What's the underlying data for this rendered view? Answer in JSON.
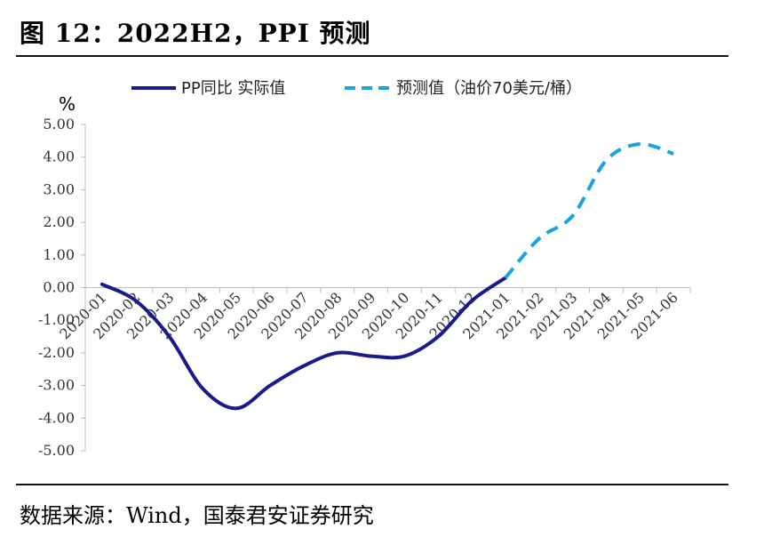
{
  "figure_title": "图 12：2022H2，PPI 预测",
  "source_note": "数据来源：Wind，国泰君安证券研究",
  "chart_data": {
    "type": "line",
    "title": "",
    "ylabel": "%",
    "ylim": [
      -5,
      5
    ],
    "yticks": [
      5,
      4,
      3,
      2,
      1,
      0,
      -1,
      -2,
      -3,
      -4,
      -5
    ],
    "ytick_labels": [
      "5.00",
      "4.00",
      "3.00",
      "2.00",
      "1.00",
      "0.00",
      "-1.00",
      "-2.00",
      "-3.00",
      "-4.00",
      "-5.00"
    ],
    "categories": [
      "2020-01",
      "2020-02",
      "2020-03",
      "2020-04",
      "2020-05",
      "2020-06",
      "2020-07",
      "2020-08",
      "2020-09",
      "2020-10",
      "2020-11",
      "2020-12",
      "2021-01",
      "2021-02",
      "2021-03",
      "2021-04",
      "2021-05",
      "2021-06"
    ],
    "series": [
      {
        "name": "PP同比 实际值",
        "style": "solid",
        "color": "#1a1a8c",
        "values": [
          0.1,
          -0.4,
          -1.5,
          -3.1,
          -3.7,
          -3.0,
          -2.4,
          -2.0,
          -2.1,
          -2.1,
          -1.5,
          -0.4,
          0.3,
          null,
          null,
          null,
          null,
          null
        ]
      },
      {
        "name": "预测值（油价70美元/桶）",
        "style": "dashed",
        "color": "#1aa3e0",
        "values": [
          null,
          null,
          null,
          null,
          null,
          null,
          null,
          null,
          null,
          null,
          null,
          null,
          0.3,
          1.5,
          2.2,
          3.9,
          4.4,
          4.1
        ]
      }
    ],
    "legend_position": "top-center",
    "grid": false
  }
}
